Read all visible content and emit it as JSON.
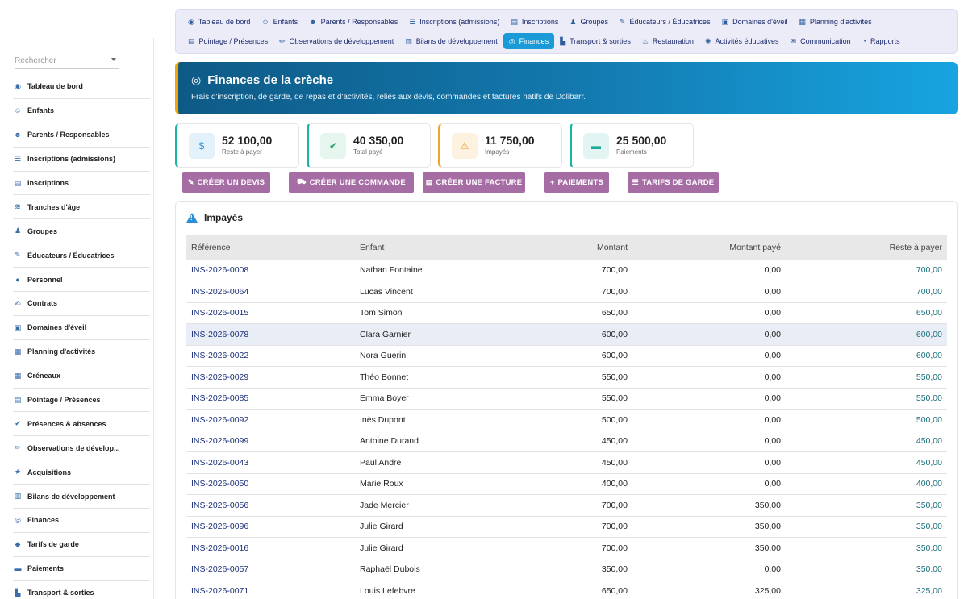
{
  "sidebar": {
    "search_placeholder": "Rechercher",
    "items": [
      {
        "icon": "gauge-icon",
        "glyph": "◉",
        "label": "Tableau de bord"
      },
      {
        "icon": "child-icon",
        "glyph": "☺",
        "label": "Enfants"
      },
      {
        "icon": "users-icon",
        "glyph": "☻",
        "label": "Parents / Responsables"
      },
      {
        "icon": "list-icon",
        "glyph": "☰",
        "label": "Inscriptions (admissions)"
      },
      {
        "icon": "clipboard-icon",
        "glyph": "▤",
        "label": "Inscriptions"
      },
      {
        "icon": "layers-icon",
        "glyph": "≋",
        "label": "Tranches d'âge"
      },
      {
        "icon": "group-icon",
        "glyph": "♟",
        "label": "Groupes"
      },
      {
        "icon": "teacher-icon",
        "glyph": "✎",
        "label": "Éducateurs / Éducatrices"
      },
      {
        "icon": "user-icon",
        "glyph": "●",
        "label": "Personnel"
      },
      {
        "icon": "contract-icon",
        "glyph": "✍",
        "label": "Contrats"
      },
      {
        "icon": "cubes-icon",
        "glyph": "▣",
        "label": "Domaines d'éveil"
      },
      {
        "icon": "calendar-icon",
        "glyph": "▦",
        "label": "Planning d'activités"
      },
      {
        "icon": "calendar-slot-icon",
        "glyph": "▦",
        "label": "Créneaux"
      },
      {
        "icon": "clipboard-check-icon",
        "glyph": "▤",
        "label": "Pointage / Présences"
      },
      {
        "icon": "user-check-icon",
        "glyph": "✔",
        "label": "Présences & absences"
      },
      {
        "icon": "pencil-icon",
        "glyph": "✏",
        "label": "Observations de dévelop..."
      },
      {
        "icon": "star-icon",
        "glyph": "★",
        "label": "Acquisitions"
      },
      {
        "icon": "report-icon",
        "glyph": "▥",
        "label": "Bilans de développement"
      },
      {
        "icon": "coins-icon",
        "glyph": "◎",
        "label": "Finances"
      },
      {
        "icon": "tag-icon",
        "glyph": "◆",
        "label": "Tarifs de garde"
      },
      {
        "icon": "money-icon",
        "glyph": "▬",
        "label": "Paiements"
      },
      {
        "icon": "bus-icon",
        "glyph": "▙",
        "label": "Transport & sorties"
      }
    ]
  },
  "topmenu": {
    "row1": [
      {
        "icon": "gauge-icon",
        "glyph": "◉",
        "label": "Tableau de bord"
      },
      {
        "icon": "child-icon",
        "glyph": "☺",
        "label": "Enfants"
      },
      {
        "icon": "users-icon",
        "glyph": "☻",
        "label": "Parents / Responsables"
      },
      {
        "icon": "list-icon",
        "glyph": "☰",
        "label": "Inscriptions (admissions)"
      },
      {
        "icon": "clipboard-icon",
        "glyph": "▤",
        "label": "Inscriptions"
      },
      {
        "icon": "group-icon",
        "glyph": "♟",
        "label": "Groupes"
      },
      {
        "icon": "teacher-icon",
        "glyph": "✎",
        "label": "Éducateurs / Éducatrices"
      },
      {
        "icon": "cubes-icon",
        "glyph": "▣",
        "label": "Domaines d'éveil"
      },
      {
        "icon": "calendar-icon",
        "glyph": "▦",
        "label": "Planning d'activités"
      }
    ],
    "row2": [
      {
        "icon": "clipboard-check-icon",
        "glyph": "▤",
        "label": "Pointage / Présences"
      },
      {
        "icon": "pencil-icon",
        "glyph": "✏",
        "label": "Observations de développement"
      },
      {
        "icon": "report-icon",
        "glyph": "▥",
        "label": "Bilans de développement"
      },
      {
        "icon": "coins-icon",
        "glyph": "◎",
        "label": "Finances",
        "active": true
      },
      {
        "icon": "bus-icon",
        "glyph": "▙",
        "label": "Transport & sorties"
      },
      {
        "icon": "utensils-icon",
        "glyph": "♨",
        "label": "Restauration"
      },
      {
        "icon": "activity-icon",
        "glyph": "✺",
        "label": "Activités éducatives"
      },
      {
        "icon": "comments-icon",
        "glyph": "✉",
        "label": "Communication"
      },
      {
        "icon": "chart-pie-icon",
        "glyph": "◔",
        "label": "Rapports"
      }
    ]
  },
  "banner": {
    "title": "Finances de la crèche",
    "subtitle": "Frais d'inscription, de garde, de repas et d'activités, reliés aux devis, commandes et factures natifs de Dolibarr."
  },
  "kpis": [
    {
      "icon": "invoice-dollar-icon",
      "glyph": "$",
      "value": "52 100,00",
      "label": "Reste à payer",
      "accent": "#1bb5a8",
      "icon_bg": "#e3f1fb",
      "icon_color": "#2a8fd4"
    },
    {
      "icon": "check-circle-icon",
      "glyph": "✔",
      "value": "40 350,00",
      "label": "Total payé",
      "accent": "#1bb5a8",
      "icon_bg": "#e6f6ef",
      "icon_color": "#22a567"
    },
    {
      "icon": "warning-icon",
      "glyph": "⚠",
      "value": "11 750,00",
      "label": "Impayés",
      "accent": "#f0a530",
      "icon_bg": "#fdf1e0",
      "icon_color": "#e8962a"
    },
    {
      "icon": "money-bill-icon",
      "glyph": "▬",
      "value": "25 500,00",
      "label": "Paiements",
      "accent": "#1bb5a8",
      "icon_bg": "#e3f5f2",
      "icon_color": "#1aa89a"
    }
  ],
  "actions": [
    {
      "icon": "file-edit-icon",
      "glyph": "✎",
      "label": "CRÉER UN DEVIS"
    },
    {
      "icon": "cart-icon",
      "glyph": "⛟",
      "label": "CRÉER UNE COMMANDE"
    },
    {
      "icon": "file-icon",
      "glyph": "▤",
      "label": "CRÉER UNE FACTURE"
    },
    {
      "icon": "plus-icon",
      "glyph": "+",
      "label": "PAIEMENTS"
    },
    {
      "icon": "list-icon",
      "glyph": "☰",
      "label": "TARIFS DE GARDE"
    }
  ],
  "unpaid": {
    "title": "Impayés",
    "columns": [
      "Référence",
      "Enfant",
      "Montant",
      "Montant payé",
      "Reste à payer"
    ],
    "rows": [
      [
        "INS-2026-0008",
        "Nathan Fontaine",
        "700,00",
        "0,00",
        "700,00"
      ],
      [
        "INS-2026-0064",
        "Lucas Vincent",
        "700,00",
        "0,00",
        "700,00"
      ],
      [
        "INS-2026-0015",
        "Tom Simon",
        "650,00",
        "0,00",
        "650,00"
      ],
      [
        "INS-2026-0078",
        "Clara Garnier",
        "600,00",
        "0,00",
        "600,00"
      ],
      [
        "INS-2026-0022",
        "Nora Guerin",
        "600,00",
        "0,00",
        "600,00"
      ],
      [
        "INS-2026-0029",
        "Théo Bonnet",
        "550,00",
        "0,00",
        "550,00"
      ],
      [
        "INS-2026-0085",
        "Emma Boyer",
        "550,00",
        "0,00",
        "550,00"
      ],
      [
        "INS-2026-0092",
        "Inès Dupont",
        "500,00",
        "0,00",
        "500,00"
      ],
      [
        "INS-2026-0099",
        "Antoine Durand",
        "450,00",
        "0,00",
        "450,00"
      ],
      [
        "INS-2026-0043",
        "Paul Andre",
        "450,00",
        "0,00",
        "450,00"
      ],
      [
        "INS-2026-0050",
        "Marie Roux",
        "400,00",
        "0,00",
        "400,00"
      ],
      [
        "INS-2026-0056",
        "Jade Mercier",
        "700,00",
        "350,00",
        "350,00"
      ],
      [
        "INS-2026-0096",
        "Julie Girard",
        "700,00",
        "350,00",
        "350,00"
      ],
      [
        "INS-2026-0016",
        "Julie Girard",
        "700,00",
        "350,00",
        "350,00"
      ],
      [
        "INS-2026-0057",
        "Raphaël Dubois",
        "350,00",
        "0,00",
        "350,00"
      ],
      [
        "INS-2026-0071",
        "Louis Lefebvre",
        "650,00",
        "325,00",
        "325,00"
      ]
    ]
  }
}
